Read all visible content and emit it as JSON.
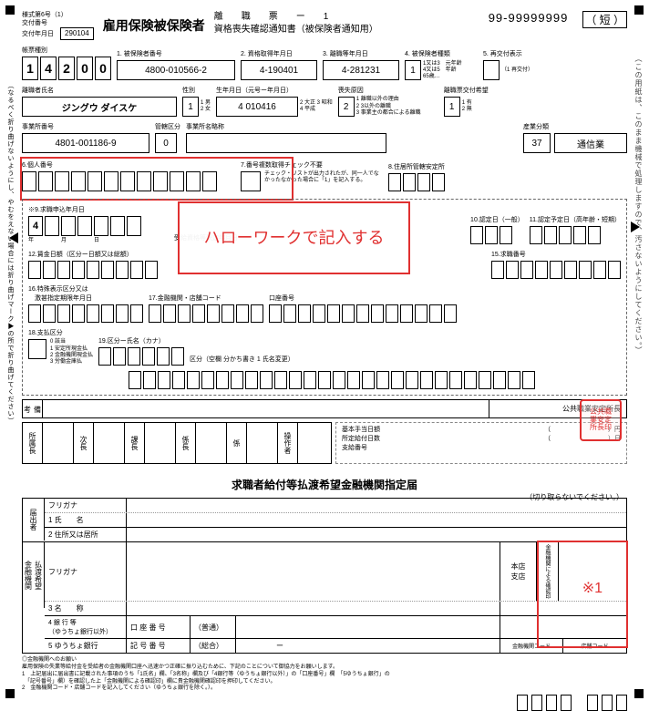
{
  "corners": true,
  "header": {
    "meta": {
      "l1": "様式第6号（1）",
      "l2": "交付番号",
      "l3": "交付年月日",
      "date": "290104"
    },
    "title": "雇用保険被保険者",
    "sub_l1": "離　　職　　票　　ー　　1",
    "sub_l2": "資格喪失確認通知書（被保険者通知用）",
    "reg_no": "99-99999999",
    "tan": "（ 短 ）"
  },
  "f1": {
    "lbl": "帳票種別",
    "vals": [
      "1",
      "4",
      "2",
      "0",
      "0"
    ]
  },
  "f2": {
    "lbl": "1. 被保険者番号",
    "val": "4800-010566-2"
  },
  "f3": {
    "lbl": "2. 資格取得年月日",
    "val": "4-190401"
  },
  "f4": {
    "lbl": "3. 離職等年月日",
    "val": "4-281231"
  },
  "f5": {
    "lbl": "4. 被保険者種類",
    "tiny": "1又は3　元年齢\n4又は5　年齢\n65歳…",
    "val": "1"
  },
  "f6": {
    "lbl": "5. 再交付表示",
    "tiny": "（1 再交付）"
  },
  "name": {
    "lbl": "離職者氏名",
    "val": "ジングウ ダイスケ"
  },
  "sex": {
    "lbl": "性別",
    "tiny": "1 男\n2 女",
    "val": "1"
  },
  "birth": {
    "lbl": "生年月日（元号ー年月日）",
    "tiny": "2 大正 3 昭和\n4 平成",
    "val": "4 010416"
  },
  "loss": {
    "lbl": "喪失原因",
    "tiny": "1 離職以外の理由\n2 3以外の離職\n3 事業主の都合による離職",
    "val": "2"
  },
  "rsk": {
    "lbl": "離職票交付希望",
    "tiny": "1 有\n2 無",
    "val": "1"
  },
  "office": {
    "lbl": "事業所番号",
    "val": "4801-001186-9"
  },
  "kanri": {
    "lbl": "管轄区分",
    "val": "0"
  },
  "abbr": {
    "lbl": "事業所名略称"
  },
  "ind": {
    "lbl": "産業分類",
    "val": "37",
    "name": "通信業"
  },
  "s6": {
    "lbl": "6.個人番号"
  },
  "s7": {
    "lbl": "7.番号複数取得チェック不要",
    "note": "チェック・リストが出力されたが、同一人でなかったなかった場合に「1」を記入する。"
  },
  "s8": {
    "lbl": "8.住居所管轄安定所"
  },
  "s9": {
    "lbl": "※9.求職申込年月日",
    "val0": "4",
    "sub": "年　　　　　月　　　　　日"
  },
  "s10": {
    "lbl": "受給資格等決定年月日"
  },
  "s11": {
    "lbl": "10.認定日（一般）"
  },
  "s12": {
    "lbl": "11.認定予定日（高年齢・短期）"
  },
  "s12b": {
    "lbl": "12.賃金日額（区分ー日額又は総額）",
    "sub": "年　　　　　月　　　　　日"
  },
  "s15": {
    "lbl": "15.求職番号"
  },
  "s16": {
    "lbl": "16.特殊表示区分又は\n　激甚指定期限年月日"
  },
  "s17": {
    "lbl": "17.金融機関・店舗コード"
  },
  "s17b": {
    "lbl": "口座番号"
  },
  "s18": {
    "lbl": "18.支払区分",
    "tiny": "0 該当\n1 安定所現金払\n2 金融機関現金払\n3 労働金庫払"
  },
  "s19": {
    "lbl": "19.区分ー氏名（カナ）"
  },
  "s19b": {
    "lbl": "区分（空欄 分かち書き 1 氏名変更）"
  },
  "overlay": "ハローワークで記入する",
  "bk": {
    "l": "備\n考",
    "r": "公共職業安定所長"
  },
  "roles": [
    "所属長",
    "次長",
    "課長",
    "係長",
    "係",
    "操作者"
  ],
  "pay": {
    "r1": "基本手当日額",
    "r2": "所定給付日数",
    "r3": "支給番号",
    "yen": "円",
    "nichi": "日"
  },
  "sec2": {
    "title": "求職者給付等払渡希望金融機関指定届",
    "cut": "（切り取らないでください。）"
  },
  "t": {
    "c1a": "届出者",
    "c1b": "払渡希望\n金融機関",
    "r1": "フリガナ",
    "r2": "1 氏　　名",
    "r3": "2 住所又は居所",
    "r4": "フリガナ",
    "r5": "3 名　　称",
    "r6": "4 銀 行 等\n（ゆうちょ銀行以外）",
    "r6b": "口 座 番 号",
    "r6c": "（普通）",
    "r7": "5 ゆうちょ銀行",
    "r7b": "記 号 番 号",
    "r7c": "（総合）",
    "br": "本店\n支店",
    "stamp": "金融機関による確認印",
    "note": "※1",
    "bl": "金融機関コード",
    "br2": "店舗コード"
  },
  "foot": {
    "h": "◎金融機関へのお願い",
    "l1": "雇用保険の失業等給付金を受給者の金融機関口座へ迅速かつ正確に振り込むために、下記のことについて御協力をお願いします。",
    "l2": "1　上記届出に届出書に記載された事項のうち「1氏名」欄、「3名称」欄及び「4銀行等（ゆうちょ銀行以外）」の「口座番号」欄　「5ゆうちょ銀行」の",
    "l3": "　「記号番号」欄）を確認した上「金融機関による確認印」欄に貴金融機関確認印を押印してください。",
    "l4": "2　金融機関コード・店舗コードを記入してください（ゆうちょ銀行を除く。）。"
  },
  "stamp": "公共職\n業安定\n所長印",
  "vtext_l": "（なるべく折り曲げないようにし、やむをえない場合には折り曲げマーク▶の所で折り曲げてください）",
  "vtext_r": "（この用紙は、このまま機械で処理しますので、汚さないようにしてください。）"
}
